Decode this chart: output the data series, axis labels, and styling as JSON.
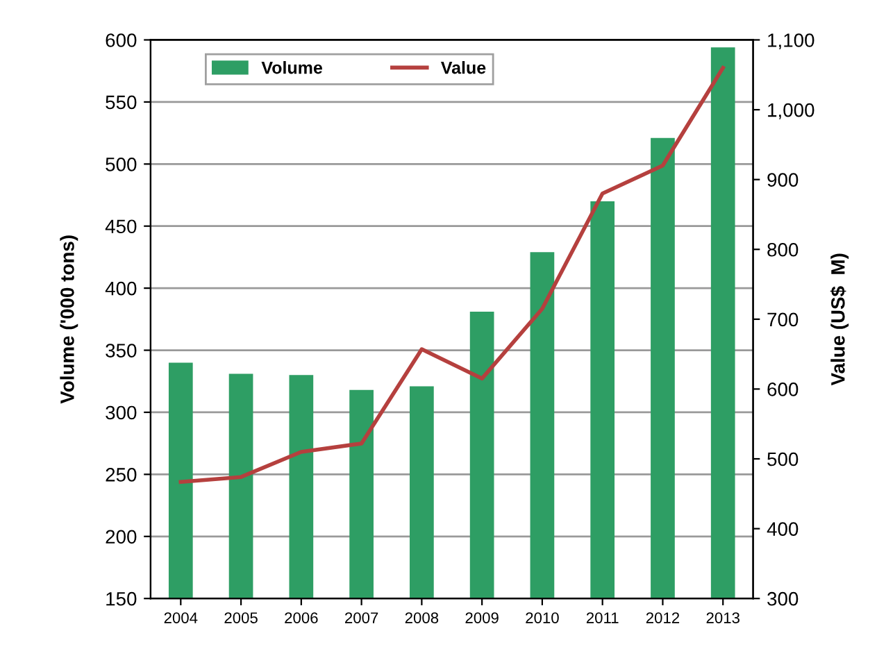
{
  "chart_data": {
    "type": "bar",
    "categories": [
      "2004",
      "2005",
      "2006",
      "2007",
      "2008",
      "2009",
      "2010",
      "2011",
      "2012",
      "2013"
    ],
    "ylabel": "Volume ('000 tons)",
    "y2label": "Value (US$  M)",
    "series": [
      {
        "name": "Volume",
        "color": "#2e9e64",
        "values": [
          340,
          331,
          330,
          318,
          321,
          381,
          429,
          470,
          521,
          594
        ]
      },
      {
        "name": "Value",
        "type": "line",
        "axis": "y2",
        "color": "#b5403e",
        "values": [
          467,
          474,
          510,
          522,
          657,
          615,
          715,
          880,
          920,
          1060
        ]
      }
    ],
    "ylim": [
      150,
      600
    ],
    "yticks": [
      150,
      200,
      250,
      300,
      350,
      400,
      450,
      500,
      550,
      600
    ],
    "y2lim": [
      300,
      1100
    ],
    "y2ticks": [
      {
        "value": 300,
        "label": "300"
      },
      {
        "value": 400,
        "label": "400"
      },
      {
        "value": 500,
        "label": "500"
      },
      {
        "value": 600,
        "label": "600"
      },
      {
        "value": 700,
        "label": "700"
      },
      {
        "value": 800,
        "label": "800"
      },
      {
        "value": 900,
        "label": "900"
      },
      {
        "value": 1000,
        "label": "1,000"
      },
      {
        "value": 1100,
        "label": "1,100"
      }
    ],
    "grid": "y",
    "legend": "top"
  }
}
